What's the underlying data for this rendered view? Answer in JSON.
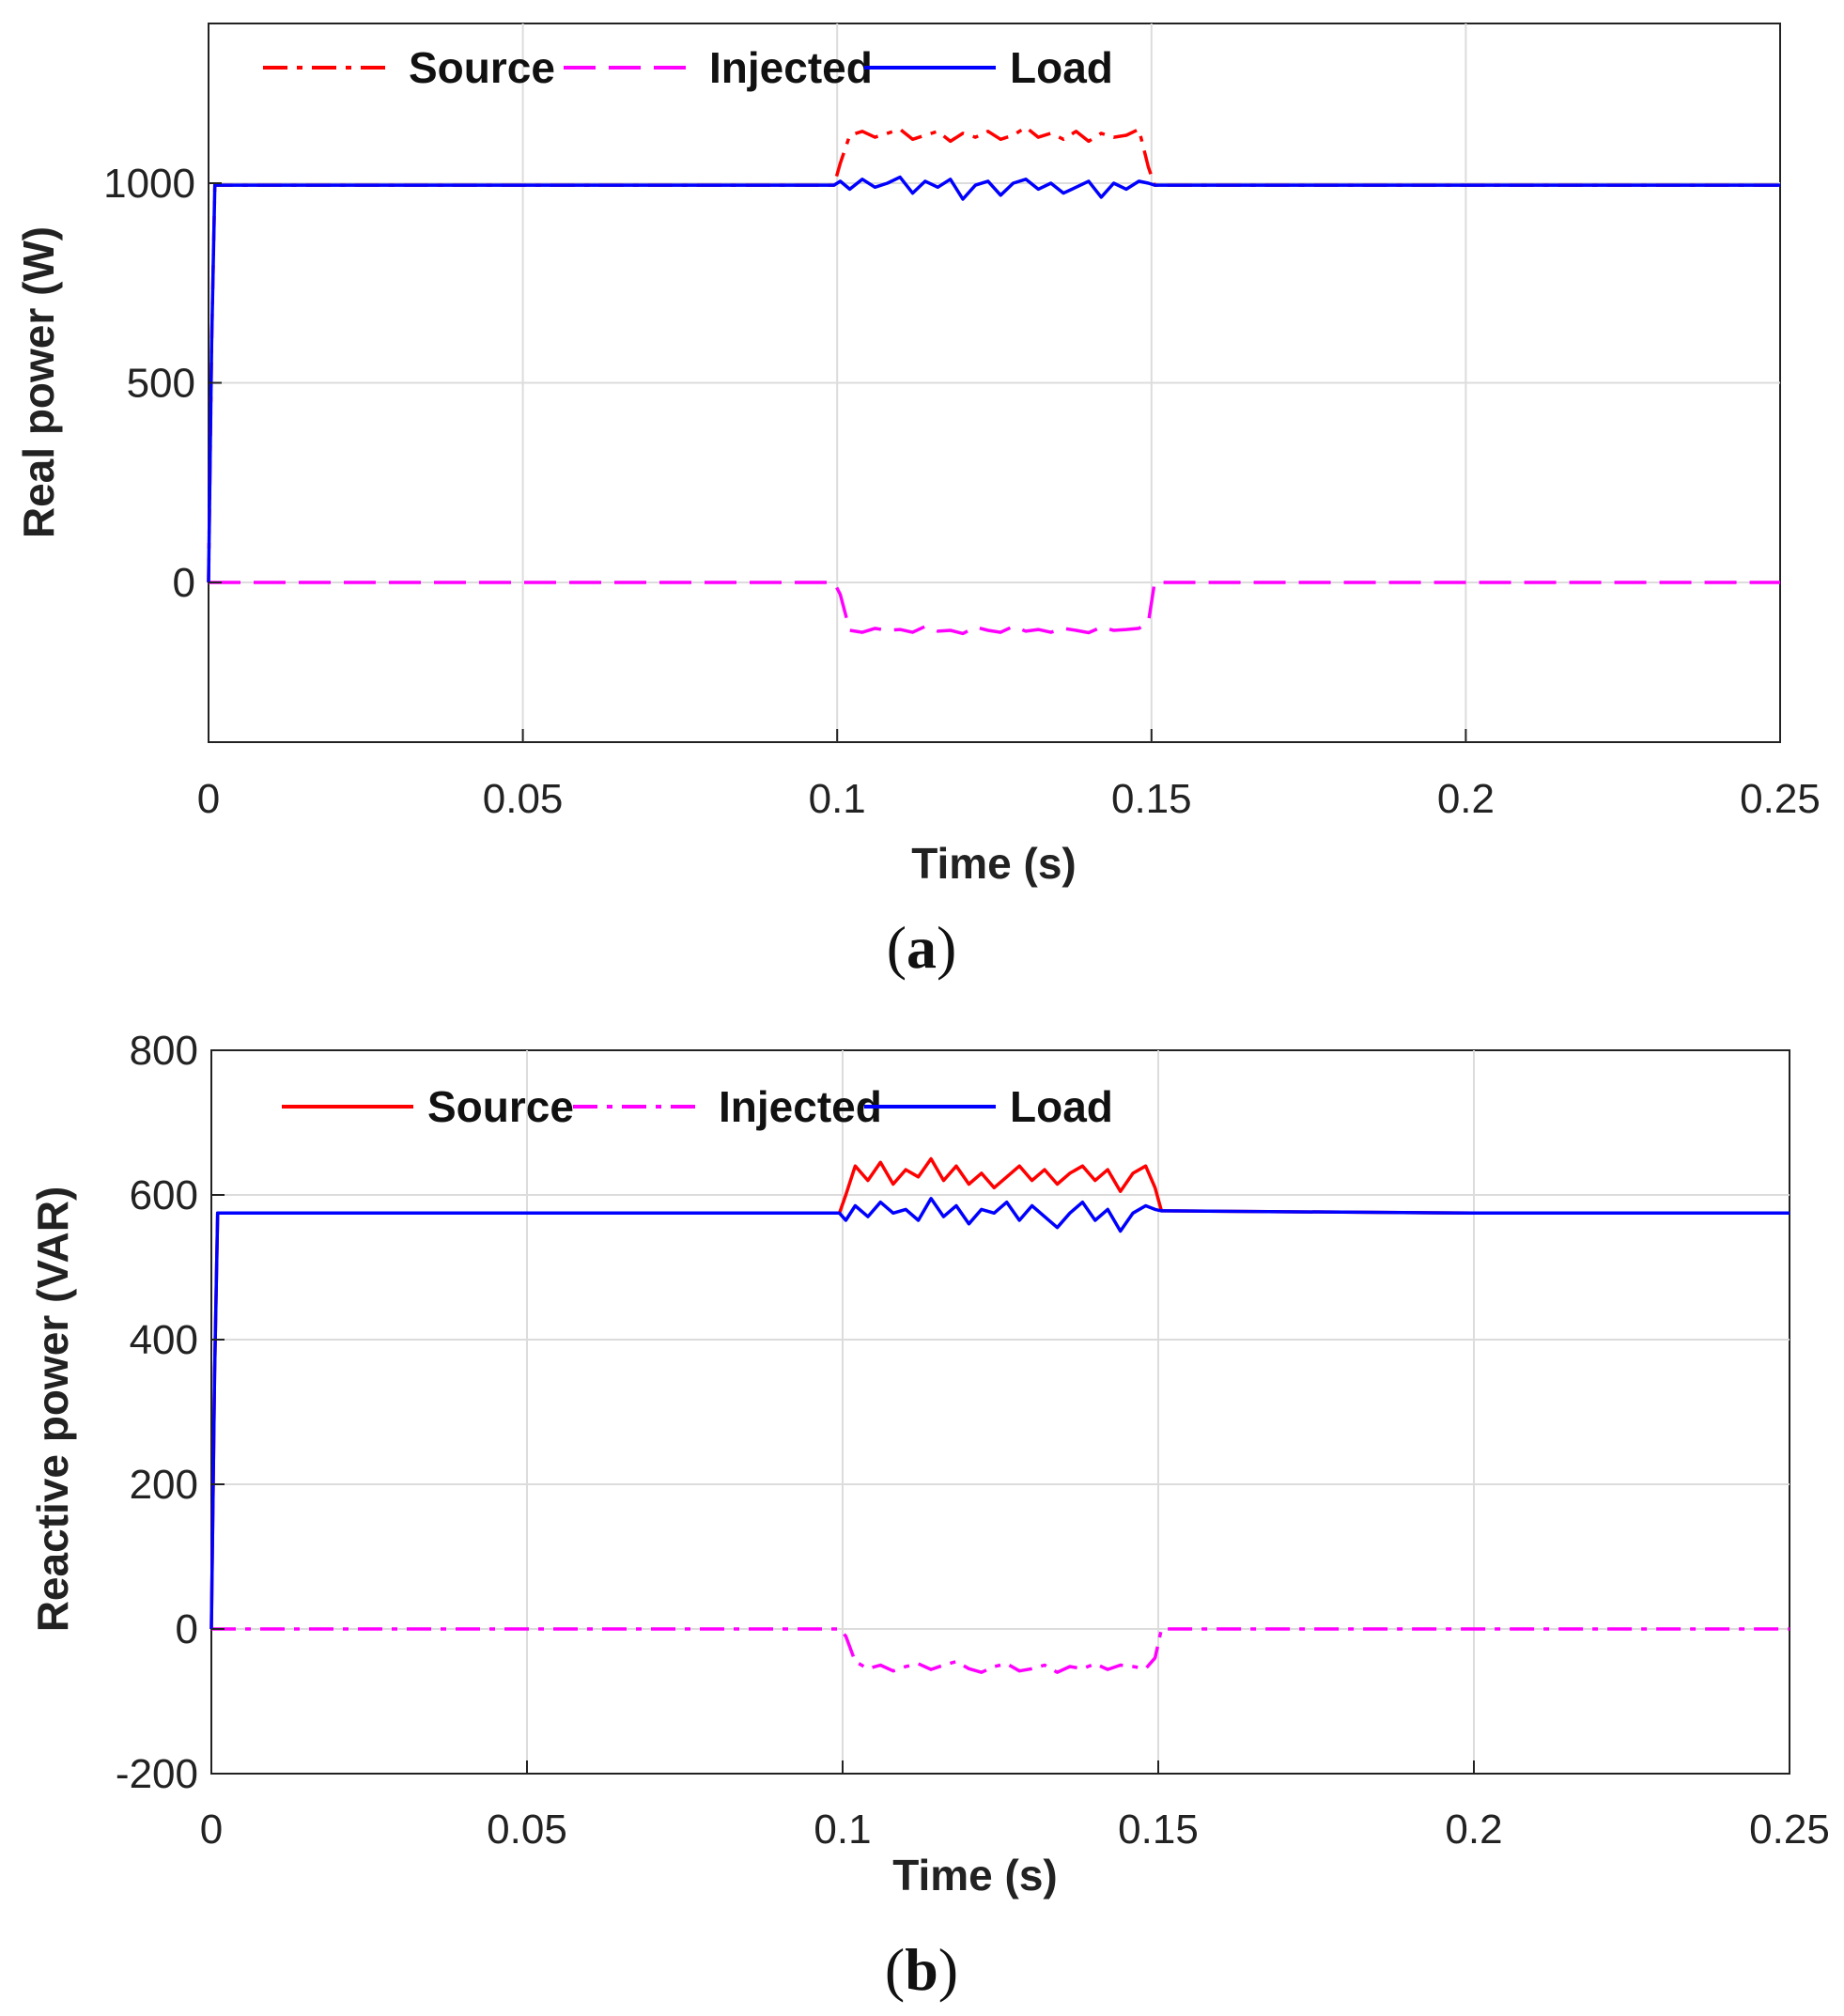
{
  "chart_data": [
    {
      "type": "line",
      "caption_letter": "a",
      "caption_open": "(",
      "caption_close": ")",
      "xlabel": "Time (s)",
      "ylabel": "Real power (W)",
      "xlim": [
        0,
        0.25
      ],
      "ylim": [
        -400,
        1400
      ],
      "grid": true,
      "legend_position": "top-left",
      "x_ticks": [
        0,
        0.05,
        0.1,
        0.15,
        0.2,
        0.25
      ],
      "x_tick_labels": [
        "0",
        "0.05",
        "0.1",
        "0.15",
        "0.2",
        "0.25"
      ],
      "y_ticks": [
        0,
        500,
        1000
      ],
      "y_tick_labels": [
        "0",
        "500",
        "1000"
      ],
      "series": [
        {
          "name": "Source",
          "color": "#ff0000",
          "style": "dashdot",
          "x": [
            0,
            0.0005,
            0.001,
            0.05,
            0.0995,
            0.1005,
            0.102,
            0.104,
            0.106,
            0.108,
            0.11,
            0.112,
            0.114,
            0.116,
            0.118,
            0.12,
            0.122,
            0.124,
            0.126,
            0.128,
            0.13,
            0.132,
            0.134,
            0.136,
            0.138,
            0.14,
            0.142,
            0.144,
            0.146,
            0.148,
            0.1495,
            0.1505,
            0.2,
            0.25
          ],
          "values": [
            0,
            600,
            995,
            995,
            995,
            1050,
            1120,
            1130,
            1115,
            1125,
            1135,
            1110,
            1120,
            1130,
            1105,
            1125,
            1115,
            1130,
            1110,
            1120,
            1140,
            1115,
            1125,
            1110,
            1130,
            1105,
            1125,
            1115,
            1120,
            1135,
            1040,
            995,
            995,
            995
          ]
        },
        {
          "name": "Injected",
          "color": "#ff00ff",
          "style": "dashed",
          "x": [
            0,
            0.05,
            0.0995,
            0.1005,
            0.102,
            0.104,
            0.106,
            0.108,
            0.11,
            0.112,
            0.114,
            0.116,
            0.118,
            0.12,
            0.122,
            0.124,
            0.126,
            0.128,
            0.13,
            0.132,
            0.134,
            0.136,
            0.138,
            0.14,
            0.142,
            0.144,
            0.146,
            0.148,
            0.1495,
            0.1505,
            0.2,
            0.25
          ],
          "values": [
            0,
            0,
            0,
            -30,
            -120,
            -125,
            -115,
            -120,
            -118,
            -125,
            -110,
            -122,
            -120,
            -128,
            -112,
            -120,
            -125,
            -110,
            -122,
            -118,
            -125,
            -115,
            -120,
            -126,
            -112,
            -120,
            -118,
            -115,
            -100,
            0,
            0,
            0
          ]
        },
        {
          "name": "Load",
          "color": "#0000ff",
          "style": "solid",
          "x": [
            0,
            0.0005,
            0.001,
            0.05,
            0.0995,
            0.1005,
            0.102,
            0.104,
            0.106,
            0.108,
            0.11,
            0.112,
            0.114,
            0.116,
            0.118,
            0.12,
            0.122,
            0.124,
            0.126,
            0.128,
            0.13,
            0.132,
            0.134,
            0.136,
            0.138,
            0.14,
            0.142,
            0.144,
            0.146,
            0.148,
            0.1495,
            0.1505,
            0.2,
            0.25
          ],
          "values": [
            0,
            600,
            995,
            995,
            995,
            1005,
            985,
            1010,
            990,
            1000,
            1015,
            975,
            1005,
            990,
            1010,
            960,
            995,
            1005,
            970,
            1000,
            1010,
            985,
            1000,
            975,
            990,
            1005,
            965,
            1000,
            985,
            1005,
            1000,
            995,
            995,
            995
          ]
        }
      ]
    },
    {
      "type": "line",
      "caption_letter": "b",
      "caption_open": "(",
      "caption_close": ")",
      "xlabel": "Time (s)",
      "ylabel": "Reactive power (VAR)",
      "xlim": [
        0,
        0.25
      ],
      "ylim": [
        -200,
        800
      ],
      "grid": true,
      "legend_position": "top-left",
      "x_ticks": [
        0,
        0.05,
        0.1,
        0.15,
        0.2,
        0.25
      ],
      "x_tick_labels": [
        "0",
        "0.05",
        "0.1",
        "0.15",
        "0.2",
        "0.25"
      ],
      "y_ticks": [
        -200,
        0,
        200,
        400,
        600,
        800
      ],
      "y_tick_labels": [
        "-200",
        "0",
        "200",
        "400",
        "600",
        "800"
      ],
      "series": [
        {
          "name": "Source",
          "color": "#ff0000",
          "style": "solid",
          "x": [
            0,
            0.0005,
            0.001,
            0.05,
            0.0995,
            0.1005,
            0.102,
            0.104,
            0.106,
            0.108,
            0.11,
            0.112,
            0.114,
            0.116,
            0.118,
            0.12,
            0.122,
            0.124,
            0.126,
            0.128,
            0.13,
            0.132,
            0.134,
            0.136,
            0.138,
            0.14,
            0.142,
            0.144,
            0.146,
            0.148,
            0.1495,
            0.1505,
            0.2,
            0.25
          ],
          "values": [
            0,
            350,
            575,
            575,
            575,
            600,
            640,
            620,
            645,
            615,
            635,
            625,
            650,
            620,
            640,
            615,
            630,
            610,
            625,
            640,
            620,
            635,
            615,
            630,
            640,
            620,
            635,
            605,
            630,
            640,
            610,
            578,
            575,
            575
          ]
        },
        {
          "name": "Injected",
          "color": "#ff00ff",
          "style": "dashdot",
          "x": [
            0,
            0.05,
            0.0995,
            0.1005,
            0.102,
            0.104,
            0.106,
            0.108,
            0.11,
            0.112,
            0.114,
            0.116,
            0.118,
            0.12,
            0.122,
            0.124,
            0.126,
            0.128,
            0.13,
            0.132,
            0.134,
            0.136,
            0.138,
            0.14,
            0.142,
            0.144,
            0.146,
            0.148,
            0.1495,
            0.1505,
            0.2,
            0.25
          ],
          "values": [
            0,
            0,
            0,
            -10,
            -45,
            -55,
            -50,
            -58,
            -52,
            -48,
            -56,
            -50,
            -45,
            -55,
            -60,
            -52,
            -48,
            -58,
            -55,
            -50,
            -60,
            -52,
            -55,
            -48,
            -56,
            -50,
            -52,
            -55,
            -40,
            0,
            0,
            0
          ]
        },
        {
          "name": "Load",
          "color": "#0000ff",
          "style": "solid",
          "x": [
            0,
            0.0005,
            0.001,
            0.05,
            0.0995,
            0.1005,
            0.102,
            0.104,
            0.106,
            0.108,
            0.11,
            0.112,
            0.114,
            0.116,
            0.118,
            0.12,
            0.122,
            0.124,
            0.126,
            0.128,
            0.13,
            0.132,
            0.134,
            0.136,
            0.138,
            0.14,
            0.142,
            0.144,
            0.146,
            0.148,
            0.1495,
            0.1505,
            0.2,
            0.25
          ],
          "values": [
            0,
            350,
            575,
            575,
            575,
            565,
            585,
            570,
            590,
            575,
            580,
            565,
            595,
            570,
            585,
            560,
            580,
            575,
            590,
            565,
            585,
            570,
            555,
            575,
            590,
            565,
            580,
            550,
            575,
            585,
            580,
            578,
            575,
            575
          ]
        }
      ]
    }
  ]
}
